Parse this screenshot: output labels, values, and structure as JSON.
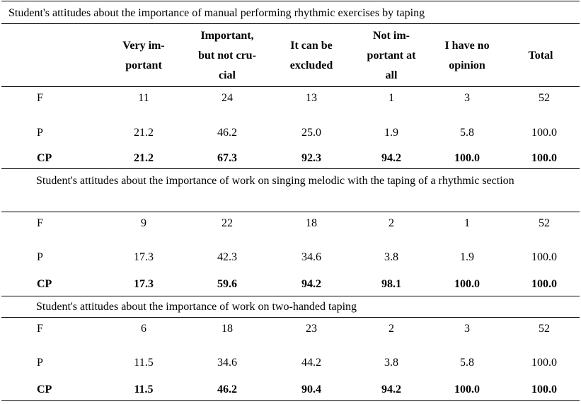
{
  "sections": [
    {
      "title": "Student's attitudes about the importance of manual performing rhythmic exercises by taping",
      "rows": [
        {
          "label": "F",
          "values": [
            "11",
            "24",
            "13",
            "1",
            "3",
            "52"
          ]
        },
        {
          "label": "P",
          "values": [
            "21.2",
            "46.2",
            "25.0",
            "1.9",
            "5.8",
            "100.0"
          ]
        },
        {
          "label": "CP",
          "values": [
            "21.2",
            "67.3",
            "92.3",
            "94.2",
            "100.0",
            "100.0"
          ]
        }
      ]
    },
    {
      "title": "Student's attitudes about the importance of work on singing melodic with the taping of a rhythmic section",
      "rows": [
        {
          "label": "F",
          "values": [
            "9",
            "22",
            "18",
            "2",
            "1",
            "52"
          ]
        },
        {
          "label": "P",
          "values": [
            "17.3",
            "42.3",
            "34.6",
            "3.8",
            "1.9",
            "100.0"
          ]
        },
        {
          "label": "CP",
          "values": [
            "17.3",
            "59.6",
            "94.2",
            "98.1",
            "100.0",
            "100.0"
          ]
        }
      ]
    },
    {
      "title": "Student's attitudes about the importance of work on two-handed taping",
      "rows": [
        {
          "label": "F",
          "values": [
            "6",
            "18",
            "23",
            "2",
            "3",
            "52"
          ]
        },
        {
          "label": "P",
          "values": [
            "11.5",
            "34.6",
            "44.2",
            "3.8",
            "5.8",
            "100.0"
          ]
        },
        {
          "label": "CP",
          "values": [
            "11.5",
            "46.2",
            "90.4",
            "94.2",
            "100.0",
            "100.0"
          ]
        }
      ]
    }
  ],
  "headers": [
    "Very im-\nportant",
    "Important,\nbut not cru-\ncial",
    "It can be\nexcluded",
    "Not im-\nportant at\nall",
    "I have no\nopinion",
    "Total"
  ]
}
